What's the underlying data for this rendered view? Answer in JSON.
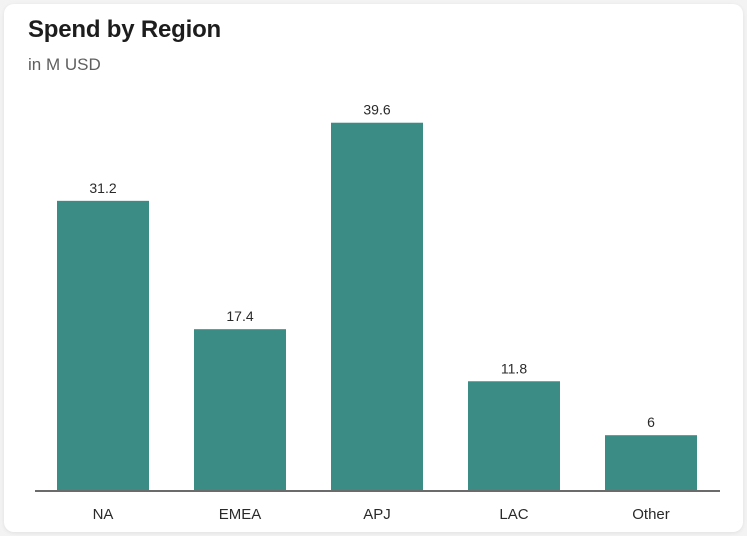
{
  "chart_data": {
    "type": "bar",
    "title": "Spend by Region",
    "subtitle": "in M USD",
    "categories": [
      "NA",
      "EMEA",
      "APJ",
      "LAC",
      "Other"
    ],
    "values": [
      31.2,
      17.4,
      39.6,
      11.8,
      6
    ],
    "value_labels": [
      "31.2",
      "17.4",
      "39.6",
      "11.8",
      "6"
    ],
    "ylim": [
      0,
      42
    ],
    "grid": false,
    "legend": "none",
    "colors": {
      "bar": "#3b8c84",
      "axis": "#6b6b6b"
    }
  }
}
